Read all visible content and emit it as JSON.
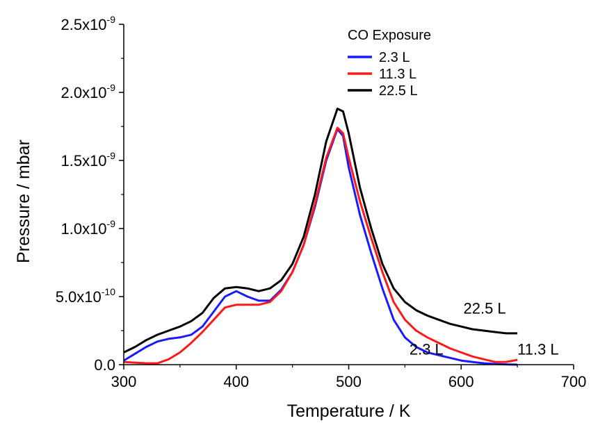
{
  "chart_data": {
    "type": "line",
    "xlabel": "Temperature / K",
    "ylabel": "Pressure / mbar",
    "xlim": [
      300,
      700
    ],
    "ylim": [
      0,
      2.5e-09
    ],
    "grid": false,
    "x_ticks": [
      {
        "value": 300,
        "label": "300"
      },
      {
        "value": 400,
        "label": "400"
      },
      {
        "value": 500,
        "label": "500"
      },
      {
        "value": 600,
        "label": "600"
      },
      {
        "value": 700,
        "label": "700"
      }
    ],
    "y_ticks": [
      {
        "value": 0,
        "label": "0.0",
        "exp": ""
      },
      {
        "value": 5e-10,
        "label": "5.0x10",
        "exp": "-10"
      },
      {
        "value": 1e-09,
        "label": "1.0x10",
        "exp": "-9"
      },
      {
        "value": 1.5e-09,
        "label": "1.5x10",
        "exp": "-9"
      },
      {
        "value": 2e-09,
        "label": "2.0x10",
        "exp": "-9"
      },
      {
        "value": 2.5e-09,
        "label": "2.5x10",
        "exp": "-9"
      }
    ],
    "legend": {
      "title": "CO Exposure",
      "placement": "top-right"
    },
    "series": [
      {
        "name": "2.3 L",
        "color": "#1a1aff",
        "points": [
          [
            300,
            3e-11
          ],
          [
            310,
            8e-11
          ],
          [
            320,
            1.3e-10
          ],
          [
            330,
            1.7e-10
          ],
          [
            340,
            1.9e-10
          ],
          [
            350,
            2e-10
          ],
          [
            360,
            2.2e-10
          ],
          [
            370,
            2.8e-10
          ],
          [
            380,
            3.9e-10
          ],
          [
            390,
            5e-10
          ],
          [
            400,
            5.4e-10
          ],
          [
            410,
            5e-10
          ],
          [
            420,
            4.7e-10
          ],
          [
            430,
            4.7e-10
          ],
          [
            440,
            5.5e-10
          ],
          [
            450,
            6.8e-10
          ],
          [
            460,
            8.8e-10
          ],
          [
            470,
            1.16e-09
          ],
          [
            480,
            1.5e-09
          ],
          [
            490,
            1.73e-09
          ],
          [
            495,
            1.68e-09
          ],
          [
            500,
            1.45e-09
          ],
          [
            510,
            1.1e-09
          ],
          [
            520,
            8.2e-10
          ],
          [
            530,
            5.6e-10
          ],
          [
            540,
            3.3e-10
          ],
          [
            550,
            2e-10
          ],
          [
            560,
            1.3e-10
          ],
          [
            570,
            9e-11
          ],
          [
            580,
            7e-11
          ],
          [
            590,
            5e-11
          ],
          [
            600,
            3e-11
          ],
          [
            610,
            2e-11
          ],
          [
            620,
            1e-11
          ],
          [
            630,
            5e-12
          ],
          [
            640,
            2e-12
          ],
          [
            650,
            0.0
          ]
        ]
      },
      {
        "name": "11.3 L",
        "color": "#ff1a1a",
        "points": [
          [
            300,
            2e-11
          ],
          [
            310,
            1.5e-11
          ],
          [
            320,
            1e-11
          ],
          [
            330,
            1e-11
          ],
          [
            340,
            4e-11
          ],
          [
            350,
            9e-11
          ],
          [
            360,
            1.6e-10
          ],
          [
            370,
            2.4e-10
          ],
          [
            380,
            3.3e-10
          ],
          [
            390,
            4.2e-10
          ],
          [
            400,
            4.4e-10
          ],
          [
            410,
            4.4e-10
          ],
          [
            420,
            4.4e-10
          ],
          [
            430,
            4.6e-10
          ],
          [
            440,
            5.4e-10
          ],
          [
            450,
            6.8e-10
          ],
          [
            460,
            8.8e-10
          ],
          [
            470,
            1.18e-09
          ],
          [
            480,
            1.52e-09
          ],
          [
            490,
            1.74e-09
          ],
          [
            495,
            1.7e-09
          ],
          [
            500,
            1.52e-09
          ],
          [
            510,
            1.2e-09
          ],
          [
            520,
            9.3e-10
          ],
          [
            530,
            6.8e-10
          ],
          [
            540,
            4.6e-10
          ],
          [
            550,
            3.3e-10
          ],
          [
            560,
            2.5e-10
          ],
          [
            570,
            2e-10
          ],
          [
            580,
            1.6e-10
          ],
          [
            590,
            1.2e-10
          ],
          [
            600,
            9e-11
          ],
          [
            610,
            6e-11
          ],
          [
            620,
            4e-11
          ],
          [
            630,
            2e-11
          ],
          [
            640,
            2e-11
          ],
          [
            650,
            3.5e-11
          ]
        ]
      },
      {
        "name": "22.5 L",
        "color": "#000000",
        "points": [
          [
            300,
            9e-11
          ],
          [
            310,
            1.3e-10
          ],
          [
            320,
            1.8e-10
          ],
          [
            330,
            2.2e-10
          ],
          [
            340,
            2.5e-10
          ],
          [
            350,
            2.8e-10
          ],
          [
            360,
            3.2e-10
          ],
          [
            370,
            3.8e-10
          ],
          [
            380,
            4.9e-10
          ],
          [
            390,
            5.6e-10
          ],
          [
            400,
            5.7e-10
          ],
          [
            410,
            5.6e-10
          ],
          [
            420,
            5.4e-10
          ],
          [
            430,
            5.6e-10
          ],
          [
            440,
            6.2e-10
          ],
          [
            450,
            7.4e-10
          ],
          [
            460,
            9.4e-10
          ],
          [
            470,
            1.25e-09
          ],
          [
            480,
            1.64e-09
          ],
          [
            490,
            1.88e-09
          ],
          [
            495,
            1.86e-09
          ],
          [
            500,
            1.7e-09
          ],
          [
            510,
            1.3e-09
          ],
          [
            520,
            1e-09
          ],
          [
            530,
            7.4e-10
          ],
          [
            540,
            5.6e-10
          ],
          [
            550,
            4.6e-10
          ],
          [
            560,
            4e-10
          ],
          [
            570,
            3.6e-10
          ],
          [
            580,
            3.3e-10
          ],
          [
            590,
            3e-10
          ],
          [
            600,
            2.8e-10
          ],
          [
            610,
            2.6e-10
          ],
          [
            620,
            2.5e-10
          ],
          [
            630,
            2.4e-10
          ],
          [
            640,
            2.3e-10
          ],
          [
            650,
            2.3e-10
          ]
        ]
      }
    ],
    "annotations": [
      {
        "text": "2.3 L",
        "x": 554,
        "y": 7.5e-11
      },
      {
        "text": "11.3 L",
        "x": 650,
        "y": 7.5e-11
      },
      {
        "text": "22.5 L",
        "x": 602,
        "y": 3.75e-10
      }
    ]
  }
}
